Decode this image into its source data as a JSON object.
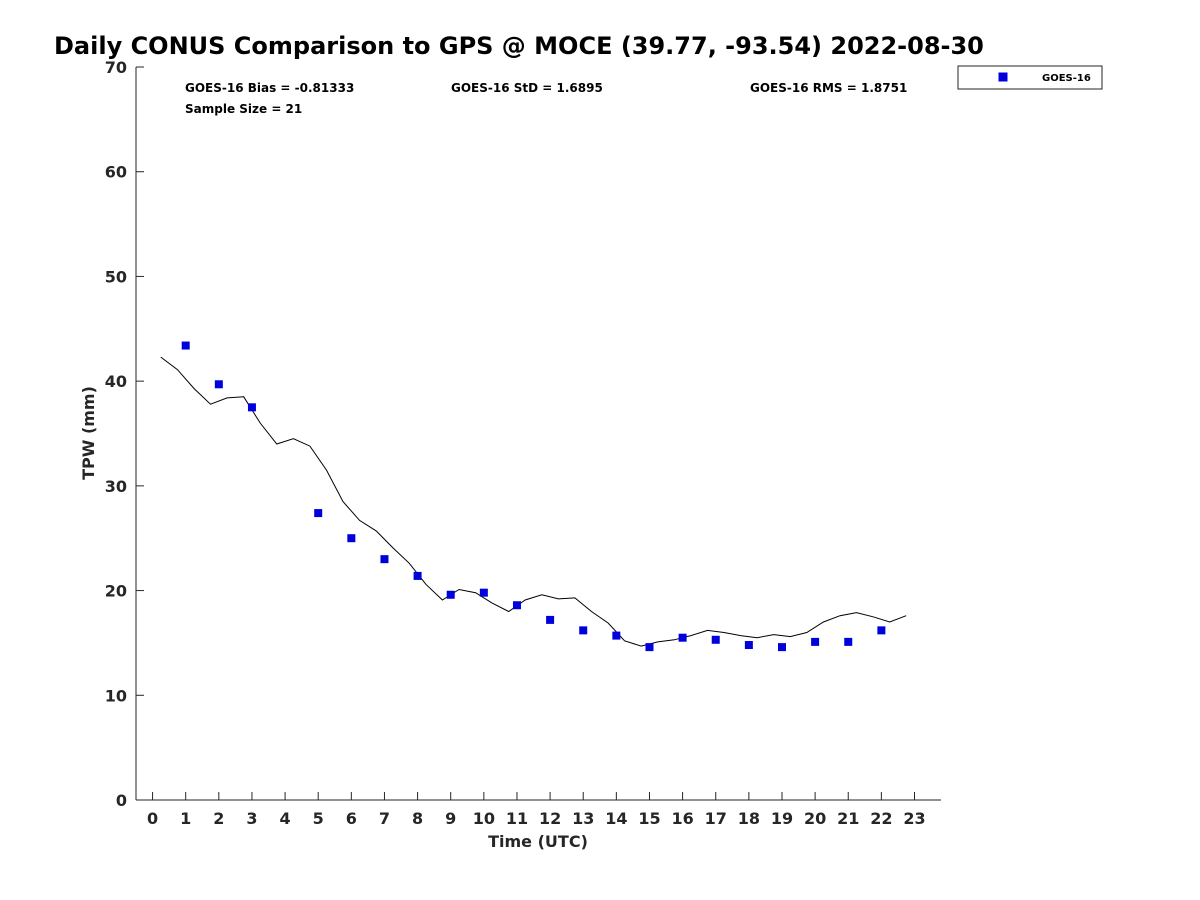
{
  "chart_data": {
    "type": "scatter",
    "title": "Daily CONUS Comparison to GPS @ MOCE (39.77, -93.54) 2022-08-30",
    "xlabel": "Time (UTC)",
    "ylabel": "TPW (mm)",
    "xlim": [
      -0.5,
      23.8
    ],
    "ylim": [
      0,
      70
    ],
    "x_ticks": [
      0,
      1,
      2,
      3,
      4,
      5,
      6,
      7,
      8,
      9,
      10,
      11,
      12,
      13,
      14,
      15,
      16,
      17,
      18,
      19,
      20,
      21,
      22,
      23
    ],
    "y_ticks": [
      0,
      10,
      20,
      30,
      40,
      50,
      60,
      70
    ],
    "stats": {
      "bias": "GOES-16 Bias = -0.81333",
      "std": "GOES-16 StD = 1.6895",
      "rms": "GOES-16 RMS = 1.8751",
      "sample": "Sample Size = 21"
    },
    "legend": {
      "position": "top-right",
      "label": "GOES-16"
    },
    "series": [
      {
        "name": "GOES-16",
        "kind": "scatter",
        "color": "#0000dd",
        "x": [
          1,
          2,
          3,
          5,
          6,
          7,
          8,
          9,
          10,
          11,
          12,
          13,
          14,
          15,
          16,
          17,
          18,
          19,
          20,
          21,
          22
        ],
        "y": [
          43.4,
          39.7,
          37.5,
          27.4,
          25.0,
          23.0,
          21.4,
          19.6,
          19.8,
          18.6,
          17.2,
          16.2,
          15.7,
          14.6,
          15.5,
          15.3,
          14.8,
          14.6,
          15.1,
          15.1,
          16.2
        ]
      },
      {
        "name": "GPS",
        "kind": "line",
        "color": "#000000",
        "x": [
          0.25,
          0.75,
          1.25,
          1.75,
          2.25,
          2.75,
          3.25,
          3.75,
          4.25,
          4.75,
          5.25,
          5.75,
          6.25,
          6.75,
          7.25,
          7.75,
          8.25,
          8.75,
          9.25,
          9.75,
          10.25,
          10.75,
          11.25,
          11.75,
          12.25,
          12.75,
          13.25,
          13.75,
          14.25,
          14.75,
          15.25,
          15.75,
          16.25,
          16.75,
          17.25,
          17.75,
          18.25,
          18.75,
          19.25,
          19.75,
          20.25,
          20.75,
          21.25,
          21.75,
          22.25,
          22.75
        ],
        "y": [
          42.3,
          41.1,
          39.3,
          37.8,
          38.4,
          38.5,
          36.0,
          34.0,
          34.5,
          33.8,
          31.5,
          28.5,
          26.7,
          25.7,
          24.1,
          22.6,
          20.6,
          19.1,
          20.1,
          19.8,
          18.8,
          18.0,
          19.1,
          19.6,
          19.2,
          19.3,
          18.0,
          16.9,
          15.2,
          14.7,
          15.1,
          15.3,
          15.7,
          16.2,
          16.0,
          15.7,
          15.5,
          15.8,
          15.6,
          16.0,
          17.0,
          17.6,
          17.9,
          17.5,
          17.0,
          17.6
        ]
      }
    ]
  }
}
